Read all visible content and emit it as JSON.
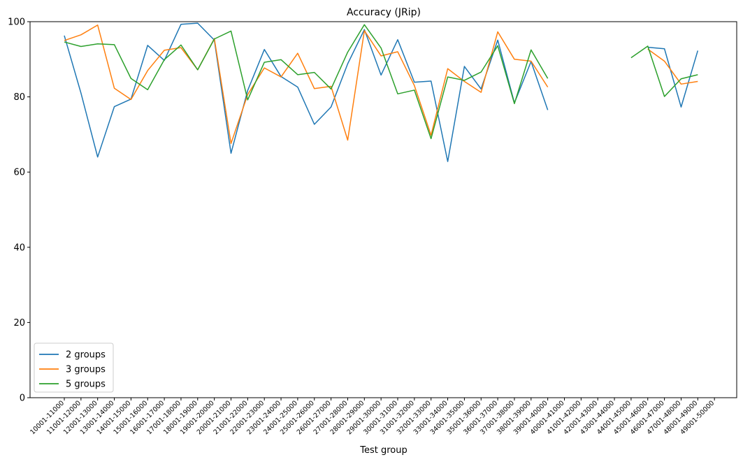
{
  "chart_data": {
    "type": "line",
    "title": "Accuracy (JRip)",
    "xlabel": "Test group",
    "ylabel": "",
    "ylim": [
      0,
      100
    ],
    "yticks": [
      0,
      20,
      40,
      60,
      80,
      100
    ],
    "grid": false,
    "legend_position": "lower-left",
    "categories": [
      "10001-11000",
      "11001-12000",
      "12001-13000",
      "13001-14000",
      "14001-15000",
      "15001-16000",
      "16001-17000",
      "17001-18000",
      "18001-19000",
      "19001-20000",
      "20001-21000",
      "21001-22000",
      "22001-23000",
      "23001-24000",
      "24001-25000",
      "25001-26000",
      "26001-27000",
      "27001-28000",
      "28001-29000",
      "29001-30000",
      "30001-31000",
      "31001-32000",
      "32001-33000",
      "33001-34000",
      "34001-35000",
      "35001-36000",
      "36001-37000",
      "37001-38000",
      "38001-39000",
      "39001-40000",
      "40001-41000",
      "41001-42000",
      "42001-43000",
      "43001-44000",
      "44001-45000",
      "45001-46000",
      "46001-47000",
      "47001-48000",
      "48001-49000",
      "49001-50000"
    ],
    "series": [
      {
        "name": "2 groups",
        "color": "#1f77b4",
        "values": [
          96.3,
          81,
          64,
          77.4,
          79.4,
          93.7,
          89.7,
          99.3,
          99.6,
          95.1,
          65,
          81.7,
          92.6,
          85.4,
          82.6,
          72.7,
          77.3,
          88.8,
          97.9,
          85.8,
          95.2,
          83.9,
          84.2,
          62.8,
          88.1,
          82.1,
          95.1,
          78.4,
          89.4,
          76.5,
          null,
          null,
          null,
          null,
          null,
          93.2,
          92.8,
          77.3,
          92.3,
          null
        ]
      },
      {
        "name": "3 groups",
        "color": "#ff7f0e",
        "values": [
          95,
          96.5,
          99.1,
          82.3,
          79.3,
          87,
          92.4,
          93.1,
          87.2,
          95.5,
          67.6,
          80.6,
          87.7,
          85.3,
          91.6,
          82.2,
          82.8,
          68.5,
          97.6,
          90.9,
          92,
          83,
          69.8,
          87.5,
          84.1,
          81.2,
          97.3,
          90,
          89.5,
          82.6,
          null,
          null,
          null,
          null,
          null,
          92.7,
          89.5,
          83.4,
          84.1,
          null
        ]
      },
      {
        "name": "5 groups",
        "color": "#2ca02c",
        "values": [
          94.6,
          93.4,
          94.1,
          93.9,
          84.9,
          81.9,
          89.9,
          93.8,
          87.2,
          95.4,
          97.5,
          79.2,
          89.2,
          89.9,
          85.9,
          86.5,
          82.1,
          91.9,
          99.2,
          93,
          80.8,
          81.8,
          68.9,
          85.3,
          84.4,
          86.6,
          93.6,
          78.2,
          92.5,
          84.9,
          null,
          null,
          null,
          null,
          90.4,
          93.5,
          80.1,
          84.8,
          85.9,
          null
        ]
      }
    ]
  }
}
